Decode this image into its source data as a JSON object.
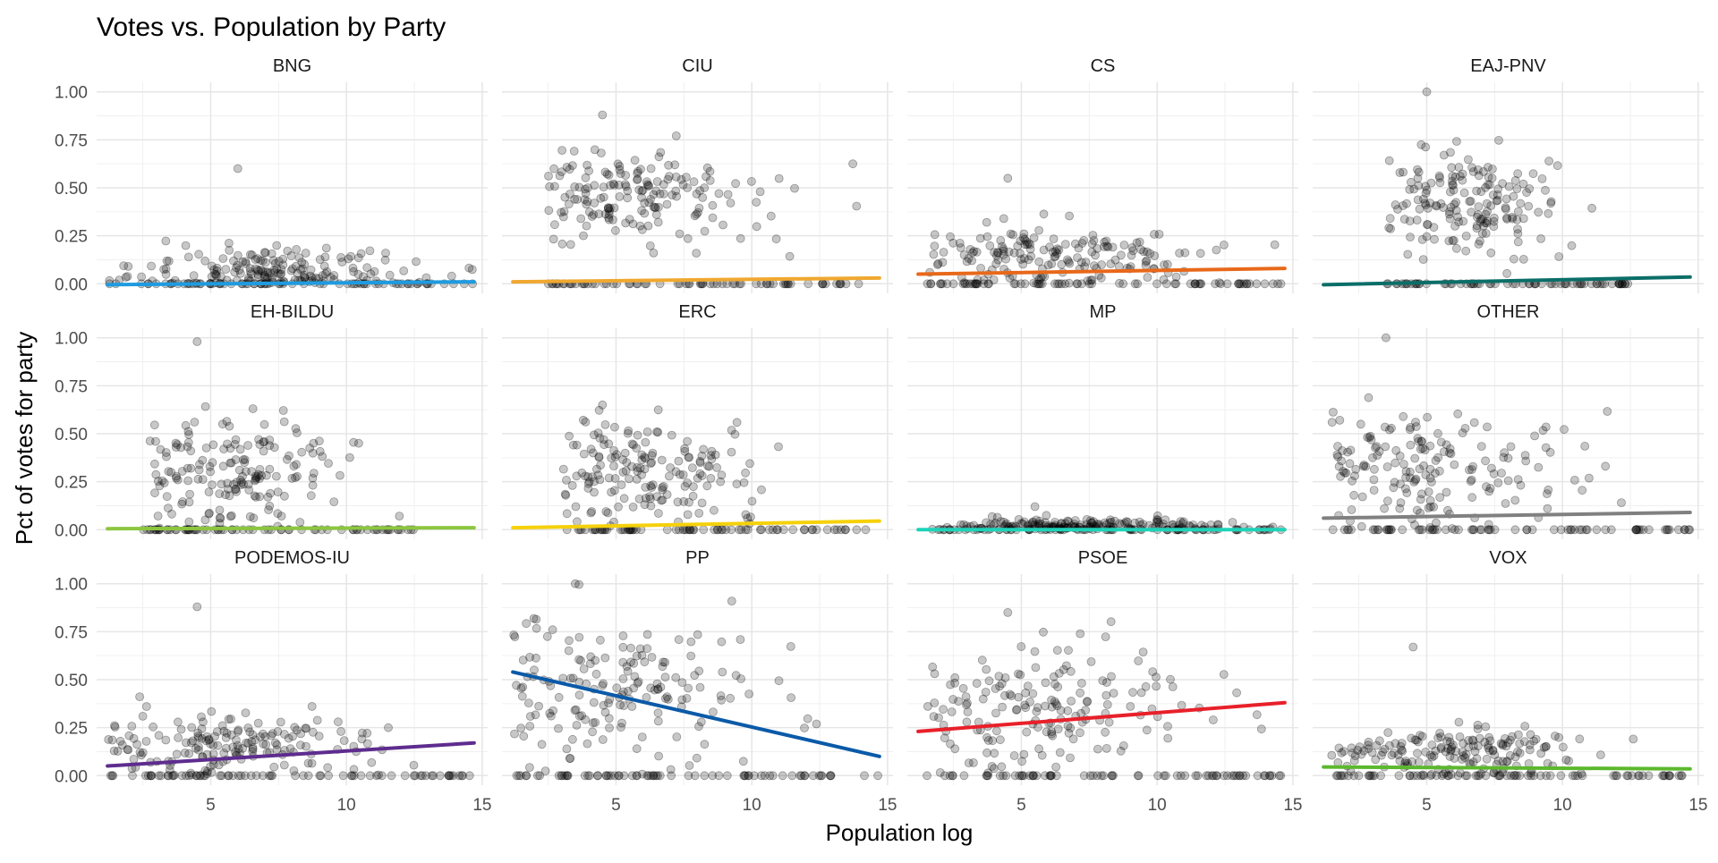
{
  "chart_data": {
    "type": "scatter",
    "title": "Votes vs. Population by Party",
    "xlabel": "Population log",
    "ylabel": "Pct of votes for party",
    "xlim": [
      0.8,
      15.2
    ],
    "ylim": [
      -0.05,
      1.05
    ],
    "x_ticks": [
      5,
      10,
      15
    ],
    "y_ticks": [
      0.0,
      0.25,
      0.5,
      0.75,
      1.0
    ],
    "x_tick_labels": [
      "5",
      "10",
      "15"
    ],
    "y_tick_labels": [
      "0.00",
      "0.25",
      "0.50",
      "0.75",
      "1.00"
    ],
    "grid": true,
    "legend": "none",
    "point_color": "#000000",
    "facets": [
      {
        "name": "BNG",
        "trend": {
          "x": [
            1.2,
            14.7
          ],
          "y": [
            -0.005,
            0.01
          ]
        },
        "line_color": "#1e9be0",
        "points": {
          "x_range": [
            1.2,
            14.7
          ],
          "x_peak": 7.5,
          "y_center": 0.07,
          "y_spread": 0.06,
          "y_max": 0.6
        }
      },
      {
        "name": "CIU",
        "trend": {
          "x": [
            1.2,
            14.7
          ],
          "y": [
            0.01,
            0.03
          ]
        },
        "line_color": "#f0a830",
        "points": {
          "x_range": [
            2.5,
            14.5
          ],
          "x_peak": 6.0,
          "y_center": 0.45,
          "y_spread": 0.12,
          "y_max": 0.88
        }
      },
      {
        "name": "CS",
        "trend": {
          "x": [
            1.2,
            14.7
          ],
          "y": [
            0.05,
            0.08
          ]
        },
        "line_color": "#e8681a",
        "points": {
          "x_range": [
            1.5,
            14.7
          ],
          "x_peak": 6.0,
          "y_center": 0.14,
          "y_spread": 0.08,
          "y_max": 0.55
        }
      },
      {
        "name": "EAJ-PNV",
        "trend": {
          "x": [
            1.2,
            14.7
          ],
          "y": [
            -0.005,
            0.035
          ]
        },
        "line_color": "#0b6e68",
        "points": {
          "x_range": [
            3.5,
            12.5
          ],
          "x_peak": 6.5,
          "y_center": 0.42,
          "y_spread": 0.14,
          "y_max": 1.0
        }
      },
      {
        "name": "EH-BILDU",
        "trend": {
          "x": [
            1.2,
            14.7
          ],
          "y": [
            0.005,
            0.01
          ]
        },
        "line_color": "#8cc63f",
        "points": {
          "x_range": [
            2.5,
            12.5
          ],
          "x_peak": 6.0,
          "y_center": 0.3,
          "y_spread": 0.15,
          "y_max": 0.98
        }
      },
      {
        "name": "ERC",
        "trend": {
          "x": [
            1.2,
            14.7
          ],
          "y": [
            0.01,
            0.045
          ]
        },
        "line_color": "#f5d10a",
        "points": {
          "x_range": [
            3.0,
            14.5
          ],
          "x_peak": 6.0,
          "y_center": 0.3,
          "y_spread": 0.13,
          "y_max": 0.65
        }
      },
      {
        "name": "MP",
        "trend": {
          "x": [
            1.2,
            14.7
          ],
          "y": [
            0.0,
            0.0
          ]
        },
        "line_color": "#1ed3b8",
        "points": {
          "x_range": [
            1.5,
            14.7
          ],
          "x_peak": 7.0,
          "y_center": 0.02,
          "y_spread": 0.02,
          "y_max": 0.12
        }
      },
      {
        "name": "OTHER",
        "trend": {
          "x": [
            1.2,
            14.7
          ],
          "y": [
            0.06,
            0.09
          ]
        },
        "line_color": "#808080",
        "points": {
          "x_range": [
            1.5,
            14.7
          ],
          "x_peak": 5.0,
          "y_center": 0.3,
          "y_spread": 0.16,
          "y_max": 1.0
        }
      },
      {
        "name": "PODEMOS-IU",
        "trend": {
          "x": [
            1.2,
            14.7
          ],
          "y": [
            0.05,
            0.17
          ]
        },
        "line_color": "#5e2c8e",
        "points": {
          "x_range": [
            1.2,
            14.7
          ],
          "x_peak": 6.0,
          "y_center": 0.16,
          "y_spread": 0.08,
          "y_max": 0.88
        }
      },
      {
        "name": "PP",
        "trend": {
          "x": [
            1.2,
            14.7
          ],
          "y": [
            0.54,
            0.1
          ]
        },
        "line_color": "#0a5aa8",
        "points": {
          "x_range": [
            1.2,
            14.7
          ],
          "x_peak": 5.0,
          "y_center": 0.45,
          "y_spread": 0.22,
          "y_max": 1.0
        }
      },
      {
        "name": "PSOE",
        "trend": {
          "x": [
            1.2,
            14.7
          ],
          "y": [
            0.23,
            0.38
          ]
        },
        "line_color": "#e8202a",
        "points": {
          "x_range": [
            1.5,
            14.7
          ],
          "x_peak": 6.0,
          "y_center": 0.35,
          "y_spread": 0.16,
          "y_max": 0.85
        }
      },
      {
        "name": "VOX",
        "trend": {
          "x": [
            1.2,
            14.7
          ],
          "y": [
            0.045,
            0.035
          ]
        },
        "line_color": "#5cb82e",
        "points": {
          "x_range": [
            1.5,
            14.7
          ],
          "x_peak": 6.0,
          "y_center": 0.12,
          "y_spread": 0.07,
          "y_max": 0.67
        }
      }
    ]
  }
}
